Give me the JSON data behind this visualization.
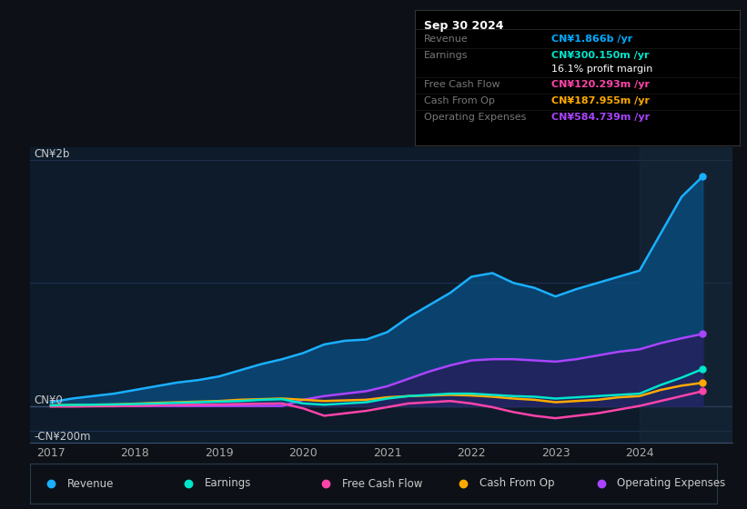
{
  "bg_color": "#0d1117",
  "plot_bg_color": "#0d1b2a",
  "grid_color": "#1e3050",
  "title_box": {
    "date": "Sep 30 2024",
    "rows": [
      {
        "label": "Revenue",
        "value": "CN¥1.866b /yr",
        "value_color": "#00aaff"
      },
      {
        "label": "Earnings",
        "value": "CN¥300.150m /yr",
        "value_color": "#00e5cc"
      },
      {
        "label": "",
        "value": "16.1% profit margin",
        "value_color": "#ffffff"
      },
      {
        "label": "Free Cash Flow",
        "value": "CN¥120.293m /yr",
        "value_color": "#ff44aa"
      },
      {
        "label": "Cash From Op",
        "value": "CN¥187.955m /yr",
        "value_color": "#ffaa00"
      },
      {
        "label": "Operating Expenses",
        "value": "CN¥584.739m /yr",
        "value_color": "#aa44ff"
      }
    ]
  },
  "ylabel_top": "CN¥2b",
  "ylabel_zero": "CN¥0",
  "ylabel_neg": "-CN¥200m",
  "x_ticks": [
    2017,
    2018,
    2019,
    2020,
    2021,
    2022,
    2023,
    2024
  ],
  "ylim": [
    -300,
    2100
  ],
  "highlight_x_start": 2024.0,
  "series": {
    "revenue": {
      "color": "#1ab0ff",
      "fill_color": "#0a4a7a",
      "label": "Revenue",
      "x": [
        2017.0,
        2017.25,
        2017.5,
        2017.75,
        2018.0,
        2018.25,
        2018.5,
        2018.75,
        2019.0,
        2019.25,
        2019.5,
        2019.75,
        2020.0,
        2020.25,
        2020.5,
        2020.75,
        2021.0,
        2021.25,
        2021.5,
        2021.75,
        2022.0,
        2022.25,
        2022.5,
        2022.75,
        2023.0,
        2023.25,
        2023.5,
        2023.75,
        2024.0,
        2024.25,
        2024.5,
        2024.75
      ],
      "y": [
        30,
        60,
        80,
        100,
        130,
        160,
        190,
        210,
        240,
        290,
        340,
        380,
        430,
        500,
        530,
        540,
        600,
        720,
        820,
        920,
        1050,
        1080,
        1000,
        960,
        890,
        950,
        1000,
        1050,
        1100,
        1400,
        1700,
        1866
      ]
    },
    "earnings": {
      "color": "#00e5cc",
      "label": "Earnings",
      "x": [
        2017.0,
        2017.25,
        2017.5,
        2017.75,
        2018.0,
        2018.25,
        2018.5,
        2018.75,
        2019.0,
        2019.25,
        2019.5,
        2019.75,
        2020.0,
        2020.25,
        2020.5,
        2020.75,
        2021.0,
        2021.25,
        2021.5,
        2021.75,
        2022.0,
        2022.25,
        2022.5,
        2022.75,
        2023.0,
        2023.25,
        2023.5,
        2023.75,
        2024.0,
        2024.25,
        2024.5,
        2024.75
      ],
      "y": [
        5,
        8,
        10,
        12,
        15,
        20,
        25,
        30,
        35,
        40,
        50,
        55,
        20,
        10,
        20,
        30,
        60,
        80,
        90,
        100,
        100,
        90,
        80,
        75,
        60,
        70,
        80,
        90,
        100,
        170,
        230,
        300
      ]
    },
    "free_cash_flow": {
      "color": "#ff44aa",
      "label": "Free Cash Flow",
      "x": [
        2017.0,
        2017.25,
        2017.5,
        2017.75,
        2018.0,
        2018.25,
        2018.5,
        2018.75,
        2019.0,
        2019.25,
        2019.5,
        2019.75,
        2020.0,
        2020.25,
        2020.5,
        2020.75,
        2021.0,
        2021.25,
        2021.5,
        2021.75,
        2022.0,
        2022.25,
        2022.5,
        2022.75,
        2023.0,
        2023.25,
        2023.5,
        2023.75,
        2024.0,
        2024.25,
        2024.5,
        2024.75
      ],
      "y": [
        -5,
        -5,
        -3,
        -2,
        0,
        5,
        8,
        10,
        12,
        15,
        18,
        20,
        -20,
        -80,
        -60,
        -40,
        -10,
        20,
        30,
        40,
        20,
        -10,
        -50,
        -80,
        -100,
        -80,
        -60,
        -30,
        0,
        40,
        80,
        120
      ]
    },
    "cash_from_op": {
      "color": "#ffaa00",
      "label": "Cash From Op",
      "x": [
        2017.0,
        2017.25,
        2017.5,
        2017.75,
        2018.0,
        2018.25,
        2018.5,
        2018.75,
        2019.0,
        2019.25,
        2019.5,
        2019.75,
        2020.0,
        2020.25,
        2020.5,
        2020.75,
        2021.0,
        2021.25,
        2021.5,
        2021.75,
        2022.0,
        2022.25,
        2022.5,
        2022.75,
        2023.0,
        2023.25,
        2023.5,
        2023.75,
        2024.0,
        2024.25,
        2024.5,
        2024.75
      ],
      "y": [
        5,
        8,
        10,
        12,
        18,
        25,
        30,
        35,
        40,
        50,
        55,
        60,
        50,
        40,
        45,
        50,
        70,
        80,
        85,
        90,
        85,
        75,
        60,
        50,
        30,
        40,
        50,
        70,
        80,
        130,
        165,
        188
      ]
    },
    "operating_expenses": {
      "color": "#aa44ff",
      "label": "Operating Expenses",
      "x": [
        2017.0,
        2017.25,
        2017.5,
        2017.75,
        2018.0,
        2018.25,
        2018.5,
        2018.75,
        2019.0,
        2019.25,
        2019.5,
        2019.75,
        2020.0,
        2020.25,
        2020.5,
        2020.75,
        2021.0,
        2021.25,
        2021.5,
        2021.75,
        2022.0,
        2022.25,
        2022.5,
        2022.75,
        2023.0,
        2023.25,
        2023.5,
        2023.75,
        2024.0,
        2024.25,
        2024.5,
        2024.75
      ],
      "y": [
        0,
        0,
        0,
        0,
        0,
        0,
        0,
        0,
        0,
        0,
        0,
        0,
        50,
        80,
        100,
        120,
        160,
        220,
        280,
        330,
        370,
        380,
        380,
        370,
        360,
        380,
        410,
        440,
        460,
        510,
        550,
        585
      ]
    }
  },
  "legend": [
    {
      "label": "Revenue",
      "color": "#1ab0ff"
    },
    {
      "label": "Earnings",
      "color": "#00e5cc"
    },
    {
      "label": "Free Cash Flow",
      "color": "#ff44aa"
    },
    {
      "label": "Cash From Op",
      "color": "#ffaa00"
    },
    {
      "label": "Operating Expenses",
      "color": "#aa44ff"
    }
  ]
}
